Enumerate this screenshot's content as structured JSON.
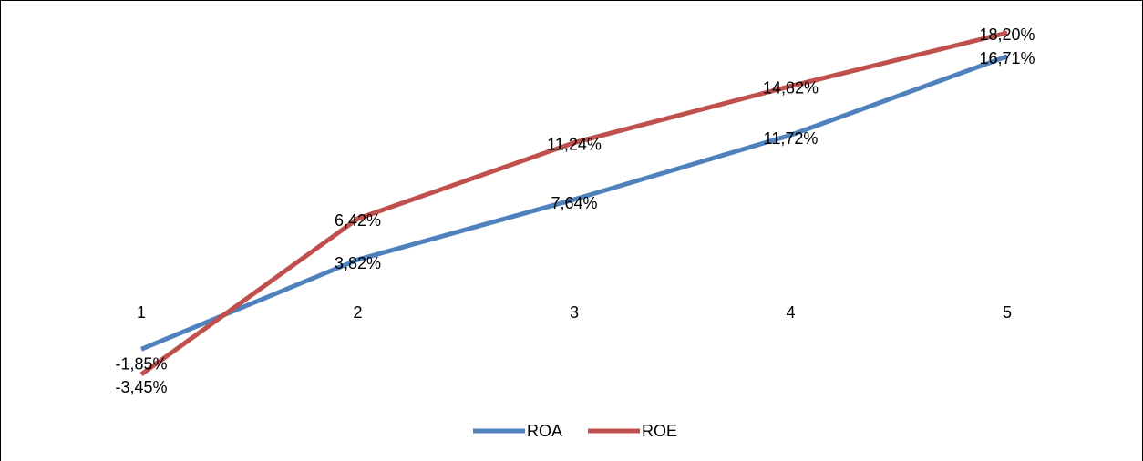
{
  "chart_data": {
    "type": "line",
    "title": "",
    "xlabel": "",
    "ylabel": "",
    "categories": [
      "1",
      "2",
      "3",
      "4",
      "5"
    ],
    "ylim": [
      -0.0345,
      0.182
    ],
    "grid": false,
    "legend": "bottom",
    "series": [
      {
        "name": "ROA",
        "color": "#4F81BD",
        "values": [
          -0.0185,
          0.0382,
          0.0764,
          0.1172,
          0.1671
        ],
        "labels": [
          "-1,85%",
          "3,82%",
          "7,64%",
          "11,72%",
          "16,71%"
        ]
      },
      {
        "name": "ROE",
        "color": "#C0504D",
        "values": [
          -0.0345,
          0.0642,
          0.1124,
          0.1482,
          0.182
        ],
        "labels": [
          "-3,45%",
          "6,42%",
          "11,24%",
          "14,82%",
          "18,20%"
        ]
      }
    ]
  }
}
